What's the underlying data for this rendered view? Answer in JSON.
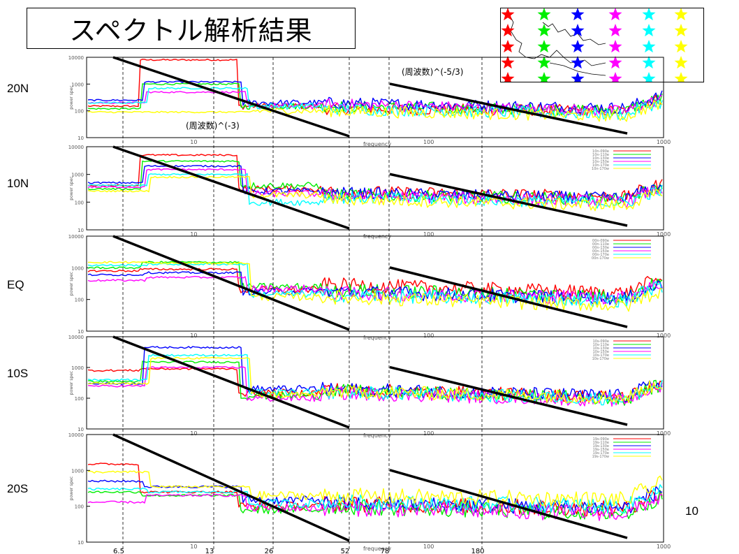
{
  "slide": {
    "title": "スペクトル解析結果",
    "page_number": "10"
  },
  "colors": {
    "series": [
      "#ff0000",
      "#00ee00",
      "#0000ff",
      "#ff00ff",
      "#00ffff",
      "#ffff00"
    ],
    "trend_line": "#000000",
    "grid": "#000000"
  },
  "star_legend": {
    "rows": 5,
    "icon": "star-icon",
    "columns": [
      "#ff0000",
      "#00ee00",
      "#0000ff",
      "#ff00ff",
      "#00ffff",
      "#ffff00"
    ]
  },
  "shared": {
    "x_label": "frequency",
    "y_label": "power spec",
    "x_ticks": [
      "10",
      "100",
      "1000"
    ],
    "y_ticks": [
      "10000",
      "1000",
      "100",
      "10"
    ],
    "period_labels": [
      "6.5",
      "13",
      "26",
      "52",
      "78",
      "180"
    ]
  },
  "annotations": {
    "slope_low": "(周波数)^(-3)",
    "slope_high": "(周波数)^(-5/3)"
  },
  "chart_data": [
    {
      "type": "line",
      "row_label": "20N",
      "x_scale": "log",
      "y_scale": "log",
      "xlim": [
        3.5,
        1000
      ],
      "ylim": [
        10,
        10000
      ],
      "legend_entries": [],
      "series_levels": [
        {
          "low": 150,
          "plateau": 8000,
          "mid": 150,
          "high_start": 120,
          "high_end": 100
        },
        {
          "low": 120,
          "plateau": 1000,
          "mid": 150,
          "high_start": 150,
          "high_end": 100
        },
        {
          "low": 250,
          "plateau": 1200,
          "mid": 200,
          "high_start": 200,
          "high_end": 120
        },
        {
          "low": 200,
          "plateau": 500,
          "mid": 150,
          "high_start": 180,
          "high_end": 90
        },
        {
          "low": 200,
          "plateau": 700,
          "mid": 150,
          "high_start": 120,
          "high_end": 70
        },
        {
          "low": 90,
          "plateau": 90,
          "mid": 100,
          "high_start": 100,
          "high_end": 60
        }
      ]
    },
    {
      "type": "line",
      "row_label": "10N",
      "x_scale": "log",
      "y_scale": "log",
      "xlim": [
        3.5,
        1000
      ],
      "ylim": [
        10,
        10000
      ],
      "legend_entries": [
        "10n-090e",
        "10n-110e",
        "10n-130e",
        "10n-150e",
        "10n-170e",
        "10n-170w"
      ],
      "series_levels": [
        {
          "low": 400,
          "plateau": 5000,
          "mid": 300,
          "high_start": 250,
          "high_end": 150
        },
        {
          "low": 300,
          "plateau": 3000,
          "mid": 400,
          "high_start": 200,
          "high_end": 120
        },
        {
          "low": 500,
          "plateau": 2000,
          "mid": 250,
          "high_start": 220,
          "high_end": 130
        },
        {
          "low": 350,
          "plateau": 1500,
          "mid": 200,
          "high_start": 180,
          "high_end": 100
        },
        {
          "low": 400,
          "plateau": 1000,
          "mid": 100,
          "high_start": 150,
          "high_end": 90
        },
        {
          "low": 250,
          "plateau": 800,
          "mid": 180,
          "high_start": 130,
          "high_end": 70
        }
      ]
    },
    {
      "type": "line",
      "row_label": "EQ",
      "x_scale": "log",
      "y_scale": "log",
      "xlim": [
        3.5,
        1000
      ],
      "ylim": [
        10,
        10000
      ],
      "legend_entries": [
        "00n-090e",
        "00n-110e",
        "00n-130e",
        "00n-150e",
        "00n-170e",
        "00n-170w"
      ],
      "series_levels": [
        {
          "low": 800,
          "plateau": 900,
          "mid": 200,
          "high_start": 300,
          "high_end": 150
        },
        {
          "low": 1000,
          "plateau": 1500,
          "mid": 250,
          "high_start": 200,
          "high_end": 120
        },
        {
          "low": 600,
          "plateau": 700,
          "mid": 180,
          "high_start": 180,
          "high_end": 100
        },
        {
          "low": 400,
          "plateau": 500,
          "mid": 220,
          "high_start": 160,
          "high_end": 110
        },
        {
          "low": 1200,
          "plateau": 1300,
          "mid": 150,
          "high_start": 140,
          "high_end": 90
        },
        {
          "low": 1500,
          "plateau": 1400,
          "mid": 120,
          "high_start": 120,
          "high_end": 60
        }
      ]
    },
    {
      "type": "line",
      "row_label": "10S",
      "x_scale": "log",
      "y_scale": "log",
      "xlim": [
        3.5,
        1000
      ],
      "ylim": [
        10,
        10000
      ],
      "legend_entries": [
        "10s-090e",
        "10s-110e",
        "10s-130e",
        "10s-150e",
        "10s-170e",
        "10s-170w"
      ],
      "series_levels": [
        {
          "low": 800,
          "plateau": 900,
          "mid": 150,
          "high_start": 200,
          "high_end": 100
        },
        {
          "low": 350,
          "plateau": 1500,
          "mid": 120,
          "high_start": 180,
          "high_end": 90
        },
        {
          "low": 300,
          "plateau": 4500,
          "mid": 200,
          "high_start": 200,
          "high_end": 110
        },
        {
          "low": 250,
          "plateau": 1000,
          "mid": 100,
          "high_start": 150,
          "high_end": 80
        },
        {
          "low": 400,
          "plateau": 2500,
          "mid": 150,
          "high_start": 160,
          "high_end": 90
        },
        {
          "low": 300,
          "plateau": 2000,
          "mid": 130,
          "high_start": 170,
          "high_end": 100
        }
      ]
    },
    {
      "type": "line",
      "row_label": "20S",
      "x_scale": "log",
      "y_scale": "log",
      "xlim": [
        3.5,
        1000
      ],
      "ylim": [
        10,
        10000
      ],
      "legend_entries": [
        "19s-090e",
        "19s-110e",
        "19s-130e",
        "19s-150e",
        "19s-170e",
        "19s-170w"
      ],
      "series_levels": [
        {
          "low": 1500,
          "plateau": 250,
          "mid": 100,
          "high_start": 120,
          "high_end": 80
        },
        {
          "low": 250,
          "plateau": 200,
          "mid": 80,
          "high_start": 100,
          "high_end": 60
        },
        {
          "low": 500,
          "plateau": 350,
          "mid": 150,
          "high_start": 120,
          "high_end": 90
        },
        {
          "low": 130,
          "plateau": 200,
          "mid": 90,
          "high_start": 90,
          "high_end": 60
        },
        {
          "low": 300,
          "plateau": 250,
          "mid": 120,
          "high_start": 130,
          "high_end": 100
        },
        {
          "low": 900,
          "plateau": 350,
          "mid": 200,
          "high_start": 200,
          "high_end": 150
        }
      ]
    }
  ]
}
